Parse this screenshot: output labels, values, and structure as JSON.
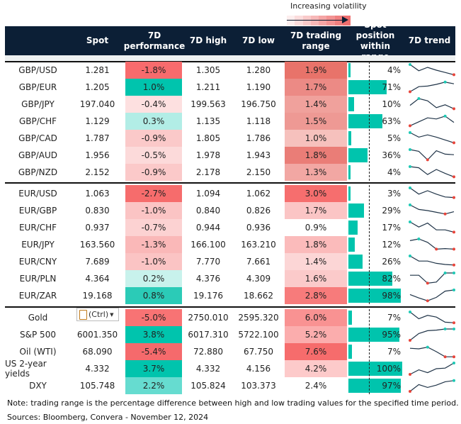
{
  "legend": {
    "title": "Increasing volatility",
    "arrow_icon": "arrow-right-icon",
    "gradient": [
      "#fdeeee",
      "#fbdcdc",
      "#f9caca",
      "#f7b8b8",
      "#f5a5a5",
      "#f39393",
      "#f08080",
      "#ee6e6e"
    ]
  },
  "headers": {
    "name": "",
    "spot": "Spot",
    "perf_line1": "7D",
    "perf_line2": "performance",
    "high": "7D high",
    "low": "7D low",
    "range_line1": "7D trading",
    "range_line2": "range",
    "pos_line1": "Spot position",
    "pos_line2": "within range",
    "trend": "7D trend"
  },
  "colors": {
    "header_bg": "#0c1f36",
    "bar": "#00c4ad",
    "trend_line": "#1f3347",
    "max_marker": "#1ec9b5",
    "min_marker": "#e8443a"
  },
  "groups": [
    [
      {
        "name": "GBP/USD",
        "spot": "1.281",
        "perf": "-1.8%",
        "perf_bg": "#f86b6d",
        "high": "1.305",
        "low": "1.280",
        "range": "1.9%",
        "range_bg": "#e8736a",
        "position": 4,
        "position_label": "4%",
        "trend": [
          1,
          0.45,
          0.75,
          0.5,
          0.3,
          0.1
        ]
      },
      {
        "name": "GBP/EUR",
        "spot": "1.205",
        "perf": "1.0%",
        "perf_bg": "#00c4ad",
        "high": "1.211",
        "low": "1.190",
        "range": "1.7%",
        "range_bg": "#ec8a85",
        "position": 71,
        "position_label": "71%",
        "trend": [
          0.1,
          0.55,
          0.6,
          0.75,
          0.95,
          0.8
        ]
      },
      {
        "name": "GBP/JPY",
        "spot": "197.040",
        "perf": "-0.4%",
        "perf_bg": "#fde0e0",
        "high": "199.563",
        "low": "196.750",
        "range": "1.4%",
        "range_bg": "#f0a19c",
        "position": 10,
        "position_label": "10%",
        "trend": [
          0.4,
          1,
          0.8,
          0.2,
          0.45,
          0.1
        ]
      },
      {
        "name": "GBP/CHF",
        "spot": "1.129",
        "perf": "0.3%",
        "perf_bg": "#b2ede6",
        "high": "1.135",
        "low": "1.118",
        "range": "1.5%",
        "range_bg": "#ee9994",
        "position": 63,
        "position_label": "63%",
        "trend": [
          0.1,
          0.45,
          0.8,
          0.7,
          0.95,
          0.4
        ]
      },
      {
        "name": "GBP/CAD",
        "spot": "1.787",
        "perf": "-0.9%",
        "perf_bg": "#fbc9c9",
        "high": "1.805",
        "low": "1.786",
        "range": "1.0%",
        "range_bg": "#f6c1bd",
        "position": 5,
        "position_label": "5%",
        "trend": [
          1,
          0.6,
          0.8,
          0.6,
          0.35,
          0.1
        ]
      },
      {
        "name": "GBP/AUD",
        "spot": "1.956",
        "perf": "-0.5%",
        "perf_bg": "#fcdada",
        "high": "1.978",
        "low": "1.943",
        "range": "1.8%",
        "range_bg": "#ea7d77",
        "position": 36,
        "position_label": "36%",
        "trend": [
          1,
          0.85,
          0.1,
          0.9,
          0.6,
          0.55
        ]
      },
      {
        "name": "GBP/NZD",
        "spot": "2.152",
        "perf": "-0.9%",
        "perf_bg": "#fbc9c9",
        "high": "2.178",
        "low": "2.150",
        "range": "1.3%",
        "range_bg": "#f2a7a3",
        "position": 4,
        "position_label": "4%",
        "trend": [
          1,
          0.9,
          0.3,
          0.75,
          0.4,
          0.1
        ]
      }
    ],
    [
      {
        "name": "EUR/USD",
        "spot": "1.063",
        "perf": "-2.7%",
        "perf_bg": "#f66c6c",
        "high": "1.094",
        "low": "1.062",
        "range": "3.0%",
        "range_bg": "#f66e6e",
        "position": 3,
        "position_label": "3%",
        "trend": [
          1,
          0.45,
          0.75,
          0.45,
          0.2,
          0.15
        ]
      },
      {
        "name": "EUR/GBP",
        "spot": "0.830",
        "perf": "-1.0%",
        "perf_bg": "#fbc4c4",
        "high": "0.840",
        "low": "0.826",
        "range": "1.7%",
        "range_bg": "#fbc5c5",
        "position": 29,
        "position_label": "29%",
        "trend": [
          1,
          0.6,
          0.5,
          0.35,
          0.2,
          0.4
        ]
      },
      {
        "name": "EUR/CHF",
        "spot": "0.937",
        "perf": "-0.7%",
        "perf_bg": "#fcd2d2",
        "high": "0.944",
        "low": "0.936",
        "range": "0.9%",
        "range_bg": "#ffffff",
        "position": 17,
        "position_label": "17%",
        "trend": [
          1,
          0.55,
          0.9,
          0.3,
          0.3,
          0.1
        ]
      },
      {
        "name": "EUR/JPY",
        "spot": "163.560",
        "perf": "-1.3%",
        "perf_bg": "#fab8b8",
        "high": "166.100",
        "low": "163.210",
        "range": "1.8%",
        "range_bg": "#fbbbbb",
        "position": 12,
        "position_label": "12%",
        "trend": [
          0.85,
          1,
          0.7,
          0.1,
          0.15,
          0.1
        ]
      },
      {
        "name": "EUR/CNY",
        "spot": "7.689",
        "perf": "-1.0%",
        "perf_bg": "#fbc4c4",
        "high": "7.770",
        "low": "7.661",
        "range": "1.4%",
        "range_bg": "#fcd6d6",
        "position": 26,
        "position_label": "26%",
        "trend": [
          1,
          0.55,
          0.55,
          0.35,
          0.25,
          0.2
        ]
      },
      {
        "name": "EUR/PLN",
        "spot": "4.364",
        "perf": "0.2%",
        "perf_bg": "#c8f2ec",
        "high": "4.376",
        "low": "4.309",
        "range": "1.6%",
        "range_bg": "#fbcaca",
        "position": 82,
        "position_label": "82%",
        "trend": [
          0.8,
          0.8,
          0.1,
          0.2,
          1,
          1
        ]
      },
      {
        "name": "EUR/ZAR",
        "spot": "19.168",
        "perf": "0.8%",
        "perf_bg": "#2bcbb7",
        "high": "19.176",
        "low": "18.662",
        "range": "2.8%",
        "range_bg": "#f77b7b",
        "position": 98,
        "position_label": "98%",
        "trend": [
          0.6,
          0.3,
          0.05,
          0.35,
          0.9,
          1
        ]
      }
    ],
    [
      {
        "name": "Gold",
        "spot": "",
        "perf": "-5.0%",
        "perf_bg": "#f87374",
        "high": "2750.010",
        "low": "2595.320",
        "range": "6.0%",
        "range_bg": "#f99292",
        "position": 7,
        "position_label": "7%",
        "trend": [
          1,
          0.4,
          0.7,
          0.55,
          0.1,
          0.05
        ]
      },
      {
        "name": "S&P 500",
        "spot": "6001.350",
        "perf": "3.8%",
        "perf_bg": "#00c4ad",
        "high": "6017.310",
        "low": "5722.100",
        "range": "5.2%",
        "range_bg": "#fbadad",
        "position": 95,
        "position_label": "95%",
        "trend": [
          0,
          0.6,
          0.85,
          0.9,
          1,
          1
        ]
      },
      {
        "name": "Oil (WTI)",
        "spot": "68.090",
        "perf": "-5.4%",
        "perf_bg": "#f56a6c",
        "high": "72.880",
        "low": "67.750",
        "range": "7.6%",
        "range_bg": "#f66c6c",
        "position": 7,
        "position_label": "7%",
        "trend": [
          0.8,
          0.75,
          0.9,
          0.5,
          0.05,
          0.05
        ]
      },
      {
        "name": "US 2-year yields",
        "spot": "4.332",
        "perf": "3.7%",
        "perf_bg": "#00c4ad",
        "high": "4.332",
        "low": "4.156",
        "range": "4.2%",
        "range_bg": "#fdcaca",
        "position": 100,
        "position_label": "100%",
        "trend": [
          0,
          0.4,
          0.15,
          0.5,
          0.55,
          1
        ]
      },
      {
        "name": "DXY",
        "spot": "105.748",
        "perf": "2.2%",
        "perf_bg": "#66dcd0",
        "high": "105.824",
        "low": "103.373",
        "range": "2.4%",
        "range_bg": "#ffffff",
        "position": 97,
        "position_label": "97%",
        "trend": [
          0,
          0.6,
          0.35,
          0.55,
          0.85,
          0.95
        ]
      }
    ]
  ],
  "paste_popup": {
    "label": "(Ctrl)",
    "icon": "clipboard-icon"
  },
  "footer": {
    "note": "Note: trading range is the percentage difference between high and low trading values for the specified time period.",
    "sources": "Sources: Bloomberg, Convera - November 12, 2024"
  }
}
